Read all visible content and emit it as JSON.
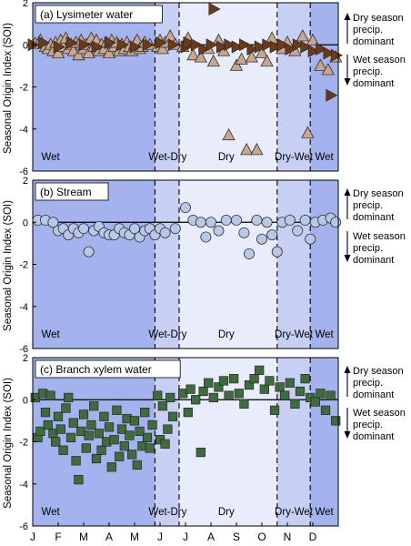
{
  "colors": {
    "wet": "#a4b3ee",
    "wet_dry": "#c7d0f4",
    "dry": "#e9ecfb",
    "dry_wet": "#c7d0f4",
    "circle_fill": "#b8c8e8",
    "square_fill": "#3f6b3f",
    "tri_up_fill": "#c9a68f",
    "tri_right_fill": "#6b3a1a"
  },
  "y_axis_label": "Seasonal Origin Index (SOI)",
  "y_ticks": [
    "2",
    "0",
    "-2",
    "-4",
    "-6"
  ],
  "x_ticks": [
    "J",
    "F",
    "M",
    "A",
    "M",
    "J",
    "J",
    "A",
    "S",
    "O",
    "N",
    "D"
  ],
  "season_labels": [
    "Wet",
    "Wet-Dry",
    "Dry",
    "Dry-Wet",
    "Wet"
  ],
  "side_notes": {
    "dry": [
      "Dry season",
      "precip.",
      "dominant"
    ],
    "wet": [
      "Wet season",
      "precip.",
      "dominant"
    ]
  },
  "chart_data": [
    {
      "type": "scatter",
      "title": "(a) Lysimeter water",
      "xlabel": "",
      "ylabel": "Seasonal Origin Index (SOI)",
      "xlim": [
        0,
        12
      ],
      "ylim": [
        -6,
        2
      ],
      "seasons": [
        {
          "name": "Wet",
          "start": 0,
          "end": 4.8
        },
        {
          "name": "Wet-Dry",
          "start": 4.8,
          "end": 5.75
        },
        {
          "name": "Dry",
          "start": 5.75,
          "end": 9.6
        },
        {
          "name": "Dry-Wet",
          "start": 9.6,
          "end": 10.9
        },
        {
          "name": "Wet",
          "start": 10.9,
          "end": 12
        }
      ],
      "series": [
        {
          "marker": "triangle-up",
          "points": [
            [
              0.1,
              0.05
            ],
            [
              0.3,
              0.2
            ],
            [
              0.5,
              -0.1
            ],
            [
              0.6,
              -0.2
            ],
            [
              0.7,
              0.0
            ],
            [
              0.8,
              -0.3
            ],
            [
              0.9,
              0.1
            ],
            [
              1.0,
              -0.4
            ],
            [
              1.1,
              0.2
            ],
            [
              1.2,
              -0.1
            ],
            [
              1.3,
              0.3
            ],
            [
              1.4,
              -0.2
            ],
            [
              1.5,
              0.0
            ],
            [
              1.6,
              -0.3
            ],
            [
              1.7,
              0.1
            ],
            [
              1.8,
              -0.5
            ],
            [
              1.9,
              0.2
            ],
            [
              2.0,
              -0.2
            ],
            [
              2.1,
              0.0
            ],
            [
              2.2,
              -0.4
            ],
            [
              2.3,
              0.3
            ],
            [
              2.4,
              -0.1
            ],
            [
              2.5,
              0.2
            ],
            [
              2.6,
              -0.3
            ],
            [
              2.7,
              0.0
            ],
            [
              2.8,
              -0.2
            ],
            [
              2.9,
              0.1
            ],
            [
              3.0,
              -0.4
            ],
            [
              3.1,
              0.2
            ],
            [
              3.2,
              -0.1
            ],
            [
              3.3,
              0.1
            ],
            [
              3.4,
              -0.3
            ],
            [
              3.5,
              0.0
            ],
            [
              3.6,
              -0.2
            ],
            [
              3.7,
              0.1
            ],
            [
              3.8,
              -0.1
            ],
            [
              3.9,
              -0.3
            ],
            [
              4.0,
              0.0
            ],
            [
              4.1,
              0.2
            ],
            [
              4.2,
              -0.2
            ],
            [
              4.3,
              -0.1
            ],
            [
              4.4,
              0.1
            ],
            [
              4.6,
              0.0
            ],
            [
              4.9,
              -0.1
            ],
            [
              5.0,
              0.2
            ],
            [
              5.1,
              -0.2
            ],
            [
              5.2,
              0.1
            ],
            [
              5.4,
              0.4
            ],
            [
              5.6,
              0.0
            ],
            [
              5.9,
              -0.1
            ],
            [
              6.1,
              0.3
            ],
            [
              6.3,
              -0.5
            ],
            [
              6.6,
              -0.6
            ],
            [
              6.9,
              -0.2
            ],
            [
              7.1,
              -0.8
            ],
            [
              7.3,
              0.2
            ],
            [
              7.5,
              -0.3
            ],
            [
              7.7,
              -4.3
            ],
            [
              8.0,
              -1.0
            ],
            [
              8.2,
              -0.7
            ],
            [
              8.4,
              -5.0
            ],
            [
              8.6,
              -0.6
            ],
            [
              8.8,
              -5.0
            ],
            [
              9.0,
              -0.4
            ],
            [
              9.2,
              -0.8
            ],
            [
              9.4,
              0.3
            ],
            [
              9.8,
              -0.2
            ],
            [
              10.0,
              0.1
            ],
            [
              10.3,
              -0.3
            ],
            [
              10.6,
              0.4
            ],
            [
              10.8,
              -4.2
            ],
            [
              11.0,
              0.2
            ],
            [
              11.3,
              -1.0
            ],
            [
              11.6,
              -1.2
            ],
            [
              11.9,
              -0.6
            ]
          ]
        },
        {
          "marker": "triangle-right",
          "points": [
            [
              0.0,
              0.0
            ],
            [
              0.4,
              0.1
            ],
            [
              1.0,
              -0.1
            ],
            [
              1.5,
              0.1
            ],
            [
              2.0,
              0.0
            ],
            [
              2.5,
              -0.1
            ],
            [
              3.0,
              0.1
            ],
            [
              3.5,
              0.0
            ],
            [
              4.0,
              -0.1
            ],
            [
              4.5,
              0.0
            ],
            [
              5.0,
              0.1
            ],
            [
              5.5,
              0.0
            ],
            [
              6.0,
              -0.1
            ],
            [
              6.1,
              0.1
            ],
            [
              6.4,
              0.0
            ],
            [
              6.7,
              -0.2
            ],
            [
              7.0,
              0.0
            ],
            [
              7.1,
              1.7
            ],
            [
              7.4,
              -0.1
            ],
            [
              7.7,
              0.0
            ],
            [
              8.0,
              -0.1
            ],
            [
              8.3,
              0.0
            ],
            [
              8.6,
              -0.2
            ],
            [
              8.9,
              -0.1
            ],
            [
              9.2,
              0.0
            ],
            [
              9.5,
              -0.1
            ],
            [
              9.8,
              0.0
            ],
            [
              10.1,
              -0.2
            ],
            [
              10.4,
              0.0
            ],
            [
              10.7,
              -0.1
            ],
            [
              11.0,
              -0.3
            ],
            [
              11.3,
              -0.2
            ],
            [
              11.6,
              -0.4
            ],
            [
              11.7,
              -2.4
            ],
            [
              11.9,
              -0.5
            ]
          ]
        }
      ]
    },
    {
      "type": "scatter",
      "title": "(b) Stream",
      "xlabel": "",
      "ylabel": "Seasonal Origin Index (SOI)",
      "xlim": [
        0,
        12
      ],
      "ylim": [
        -6,
        2
      ],
      "series": [
        {
          "marker": "circle",
          "points": [
            [
              0.2,
              0.1
            ],
            [
              0.5,
              0.1
            ],
            [
              0.8,
              0.0
            ],
            [
              1.0,
              -0.4
            ],
            [
              1.2,
              -0.3
            ],
            [
              1.4,
              -0.6
            ],
            [
              1.6,
              -0.3
            ],
            [
              1.8,
              -0.5
            ],
            [
              2.0,
              -0.3
            ],
            [
              2.2,
              -1.4
            ],
            [
              2.4,
              -0.4
            ],
            [
              2.6,
              -0.2
            ],
            [
              2.8,
              -0.5
            ],
            [
              3.0,
              -0.6
            ],
            [
              3.2,
              -0.6
            ],
            [
              3.4,
              -0.3
            ],
            [
              3.6,
              -0.5
            ],
            [
              3.8,
              -0.6
            ],
            [
              4.0,
              -0.3
            ],
            [
              4.2,
              -0.7
            ],
            [
              4.4,
              -0.4
            ],
            [
              4.6,
              -0.3
            ],
            [
              4.8,
              -0.6
            ],
            [
              5.0,
              -0.3
            ],
            [
              5.2,
              -0.5
            ],
            [
              5.6,
              -0.3
            ],
            [
              6.0,
              0.7
            ],
            [
              6.3,
              0.1
            ],
            [
              6.6,
              0.0
            ],
            [
              6.8,
              -0.7
            ],
            [
              7.0,
              0.0
            ],
            [
              7.3,
              -0.4
            ],
            [
              7.6,
              0.1
            ],
            [
              8.0,
              0.1
            ],
            [
              8.3,
              -0.5
            ],
            [
              8.5,
              -1.5
            ],
            [
              8.8,
              0.1
            ],
            [
              9.0,
              -0.8
            ],
            [
              9.2,
              0.0
            ],
            [
              9.4,
              -0.6
            ],
            [
              9.6,
              -1.4
            ],
            [
              9.8,
              0.0
            ],
            [
              10.1,
              0.1
            ],
            [
              10.4,
              -0.4
            ],
            [
              10.7,
              0.1
            ],
            [
              10.9,
              -0.8
            ],
            [
              11.1,
              0.0
            ],
            [
              11.4,
              0.1
            ],
            [
              11.7,
              0.2
            ],
            [
              11.9,
              0.0
            ]
          ]
        }
      ]
    },
    {
      "type": "scatter",
      "title": "(c) Branch xylem water",
      "xlabel": "",
      "ylabel": "Seasonal Origin Index (SOI)",
      "xlim": [
        0,
        12
      ],
      "ylim": [
        -6,
        2
      ],
      "series": [
        {
          "marker": "square",
          "points": [
            [
              0.1,
              0.1
            ],
            [
              0.2,
              -1.8
            ],
            [
              0.3,
              -1.5
            ],
            [
              0.4,
              0.3
            ],
            [
              0.5,
              -0.6
            ],
            [
              0.6,
              -1.2
            ],
            [
              0.7,
              0.2
            ],
            [
              0.8,
              -1.6
            ],
            [
              0.9,
              -2.0
            ],
            [
              1.0,
              -0.8
            ],
            [
              1.1,
              -1.4
            ],
            [
              1.2,
              -2.4
            ],
            [
              1.3,
              -0.4
            ],
            [
              1.4,
              0.1
            ],
            [
              1.5,
              -1.8
            ],
            [
              1.6,
              -1.1
            ],
            [
              1.7,
              -2.9
            ],
            [
              1.8,
              -3.8
            ],
            [
              1.9,
              -1.5
            ],
            [
              2.0,
              -0.7
            ],
            [
              2.1,
              -2.3
            ],
            [
              2.2,
              -1.7
            ],
            [
              2.3,
              -1.2
            ],
            [
              2.4,
              -0.3
            ],
            [
              2.5,
              -2.8
            ],
            [
              2.6,
              -1.6
            ],
            [
              2.7,
              -2.4
            ],
            [
              2.8,
              -0.8
            ],
            [
              2.9,
              -2.0
            ],
            [
              3.0,
              -1.3
            ],
            [
              3.1,
              -3.2
            ],
            [
              3.2,
              -1.9
            ],
            [
              3.3,
              -0.5
            ],
            [
              3.4,
              -2.7
            ],
            [
              3.5,
              -1.4
            ],
            [
              3.6,
              -2.2
            ],
            [
              3.7,
              -0.9
            ],
            [
              3.8,
              -1.7
            ],
            [
              3.9,
              -2.6
            ],
            [
              4.0,
              -1.0
            ],
            [
              4.1,
              -3.1
            ],
            [
              4.2,
              -1.5
            ],
            [
              4.3,
              -2.2
            ],
            [
              4.4,
              -0.6
            ],
            [
              4.5,
              -1.8
            ],
            [
              4.6,
              -2.3
            ],
            [
              4.7,
              -1.2
            ],
            [
              4.9,
              0.2
            ],
            [
              5.0,
              -1.9
            ],
            [
              5.1,
              -0.3
            ],
            [
              5.2,
              -2.1
            ],
            [
              5.3,
              -1.4
            ],
            [
              5.4,
              0.1
            ],
            [
              5.5,
              -0.8
            ],
            [
              5.9,
              0.3
            ],
            [
              6.1,
              -0.6
            ],
            [
              6.2,
              0.5
            ],
            [
              6.4,
              0.0
            ],
            [
              6.6,
              -2.5
            ],
            [
              6.7,
              0.4
            ],
            [
              6.9,
              0.8
            ],
            [
              7.1,
              0.1
            ],
            [
              7.3,
              0.6
            ],
            [
              7.5,
              0.9
            ],
            [
              7.7,
              0.2
            ],
            [
              7.9,
              1.0
            ],
            [
              8.1,
              0.3
            ],
            [
              8.3,
              -0.2
            ],
            [
              8.5,
              0.7
            ],
            [
              8.7,
              1.0
            ],
            [
              8.9,
              1.4
            ],
            [
              9.1,
              0.5
            ],
            [
              9.3,
              0.9
            ],
            [
              9.5,
              -0.5
            ],
            [
              9.7,
              0.6
            ],
            [
              9.9,
              0.2
            ],
            [
              10.1,
              0.8
            ],
            [
              10.3,
              -0.2
            ],
            [
              10.5,
              0.4
            ],
            [
              10.7,
              1.0
            ],
            [
              10.9,
              0.1
            ],
            [
              11.1,
              -0.1
            ],
            [
              11.3,
              0.3
            ],
            [
              11.5,
              -0.5
            ],
            [
              11.7,
              0.2
            ],
            [
              11.9,
              -1.0
            ]
          ]
        }
      ]
    }
  ]
}
